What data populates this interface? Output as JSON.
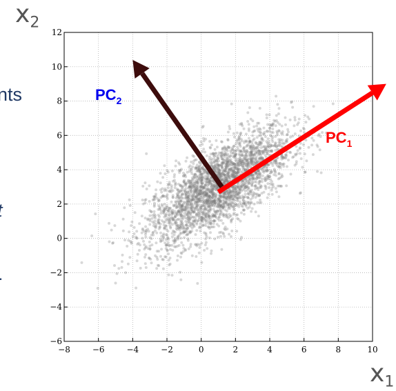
{
  "side_text": {
    "fragment_1": "nts",
    "fragment_2": "t",
    "fragment_3": "."
  },
  "axis_names": {
    "x": "x",
    "x_subscript": "1",
    "y": "x",
    "y_subscript": "2"
  },
  "chart_data": {
    "type": "scatter",
    "xlim": [
      -8,
      10
    ],
    "ylim": [
      -6,
      12
    ],
    "xticks": [
      -8,
      -6,
      -4,
      -2,
      0,
      2,
      4,
      6,
      8,
      10
    ],
    "yticks": [
      -6,
      -4,
      -2,
      0,
      2,
      4,
      6,
      8,
      10,
      12
    ],
    "grid": true,
    "point_color": "#7f7f7f",
    "scatter": {
      "center": [
        1,
        3
      ],
      "covariance": [
        [
          4.5,
          2.6
        ],
        [
          2.6,
          3.0
        ]
      ],
      "n_points": 3000
    },
    "vectors": [
      {
        "name": "PC",
        "subscript": "1",
        "color": "#ff0000",
        "label_color": "#ff0000",
        "from": [
          1,
          2.7
        ],
        "to": [
          10.8,
          9.0
        ]
      },
      {
        "name": "PC",
        "subscript": "2",
        "color": "#3d0c0c",
        "label_color": "#0000ee",
        "from": [
          1.2,
          3.0
        ],
        "to": [
          -4.0,
          10.4
        ]
      }
    ]
  }
}
